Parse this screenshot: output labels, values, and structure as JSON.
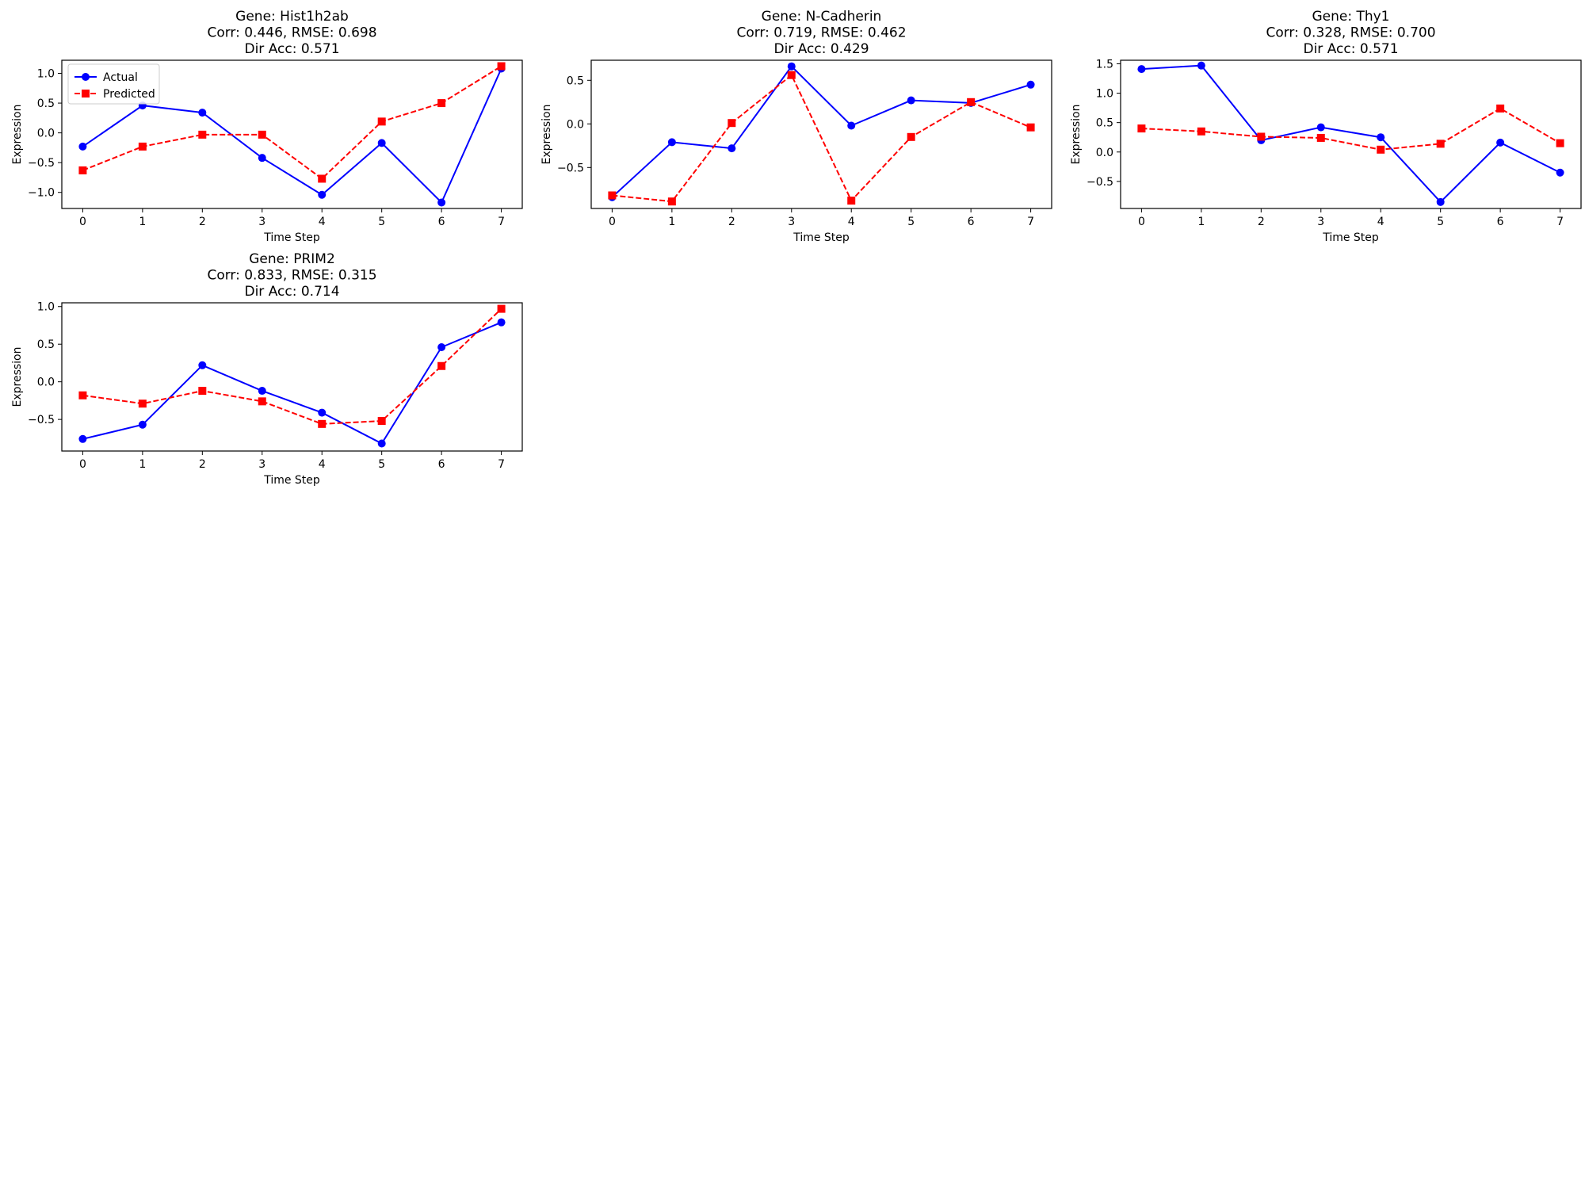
{
  "chart_data": [
    {
      "type": "line",
      "title": [
        "Gene: Hist1h2ab",
        "Corr: 0.446, RMSE: 0.698",
        "Dir Acc: 0.571"
      ],
      "xlabel": "Time Step",
      "ylabel": "Expression",
      "x": [
        0,
        1,
        2,
        3,
        4,
        5,
        6,
        7
      ],
      "xlim": [
        -0.35,
        7.35
      ],
      "ylim": [
        -1.27,
        1.22
      ],
      "yticks": [
        -1.0,
        -0.5,
        0.0,
        0.5,
        1.0
      ],
      "ytick_labels": [
        "−1.0",
        "−0.5",
        "0.0",
        "0.5",
        "1.0"
      ],
      "legend": {
        "show": true,
        "placement": "upper left"
      },
      "series": [
        {
          "name": "Actual",
          "color": "#0000ff",
          "style": "solid",
          "marker": "circle",
          "values": [
            -0.23,
            0.46,
            0.34,
            -0.42,
            -1.04,
            -0.17,
            -1.17,
            1.08
          ]
        },
        {
          "name": "Predicted",
          "color": "#ff0000",
          "style": "dashed",
          "marker": "square",
          "values": [
            -0.63,
            -0.23,
            -0.03,
            -0.03,
            -0.77,
            0.19,
            0.5,
            1.12
          ]
        }
      ]
    },
    {
      "type": "line",
      "title": [
        "Gene: N-Cadherin",
        "Corr: 0.719, RMSE: 0.462",
        "Dir Acc: 0.429"
      ],
      "xlabel": "Time Step",
      "ylabel": "Expression",
      "x": [
        0,
        1,
        2,
        3,
        4,
        5,
        6,
        7
      ],
      "xlim": [
        -0.35,
        7.35
      ],
      "ylim": [
        -0.97,
        0.73
      ],
      "yticks": [
        -0.5,
        0.0,
        0.5
      ],
      "ytick_labels": [
        "−0.5",
        "0.0",
        "0.5"
      ],
      "legend": {
        "show": false
      },
      "series": [
        {
          "name": "Actual",
          "color": "#0000ff",
          "style": "solid",
          "marker": "circle",
          "values": [
            -0.84,
            -0.21,
            -0.28,
            0.66,
            -0.02,
            0.27,
            0.24,
            0.45
          ]
        },
        {
          "name": "Predicted",
          "color": "#ff0000",
          "style": "dashed",
          "marker": "square",
          "values": [
            -0.82,
            -0.89,
            0.01,
            0.56,
            -0.88,
            -0.15,
            0.25,
            -0.04
          ]
        }
      ]
    },
    {
      "type": "line",
      "title": [
        "Gene: Thy1",
        "Corr: 0.328, RMSE: 0.700",
        "Dir Acc: 0.571"
      ],
      "xlabel": "Time Step",
      "ylabel": "Expression",
      "x": [
        0,
        1,
        2,
        3,
        4,
        5,
        6,
        7
      ],
      "xlim": [
        -0.35,
        7.35
      ],
      "ylim": [
        -0.96,
        1.56
      ],
      "yticks": [
        -0.5,
        0.0,
        0.5,
        1.0,
        1.5
      ],
      "ytick_labels": [
        "−0.5",
        "0.0",
        "0.5",
        "1.0",
        "1.5"
      ],
      "legend": {
        "show": false
      },
      "series": [
        {
          "name": "Actual",
          "color": "#0000ff",
          "style": "solid",
          "marker": "circle",
          "values": [
            1.41,
            1.47,
            0.2,
            0.42,
            0.25,
            -0.85,
            0.16,
            -0.35
          ]
        },
        {
          "name": "Predicted",
          "color": "#ff0000",
          "style": "dashed",
          "marker": "square",
          "values": [
            0.4,
            0.35,
            0.26,
            0.24,
            0.04,
            0.14,
            0.74,
            0.15
          ]
        }
      ]
    },
    {
      "type": "line",
      "title": [
        "Gene: PRIM2",
        "Corr: 0.833, RMSE: 0.315",
        "Dir Acc: 0.714"
      ],
      "xlabel": "Time Step",
      "ylabel": "Expression",
      "x": [
        0,
        1,
        2,
        3,
        4,
        5,
        6,
        7
      ],
      "xlim": [
        -0.35,
        7.35
      ],
      "ylim": [
        -0.92,
        1.05
      ],
      "yticks": [
        -0.5,
        0.0,
        0.5,
        1.0
      ],
      "ytick_labels": [
        "−0.5",
        "0.0",
        "0.5",
        "1.0"
      ],
      "legend": {
        "show": false
      },
      "series": [
        {
          "name": "Actual",
          "color": "#0000ff",
          "style": "solid",
          "marker": "circle",
          "values": [
            -0.76,
            -0.57,
            0.22,
            -0.12,
            -0.41,
            -0.82,
            0.46,
            0.79
          ]
        },
        {
          "name": "Predicted",
          "color": "#ff0000",
          "style": "dashed",
          "marker": "square",
          "values": [
            -0.18,
            -0.29,
            -0.12,
            -0.26,
            -0.56,
            -0.52,
            0.21,
            0.97
          ]
        }
      ]
    }
  ]
}
